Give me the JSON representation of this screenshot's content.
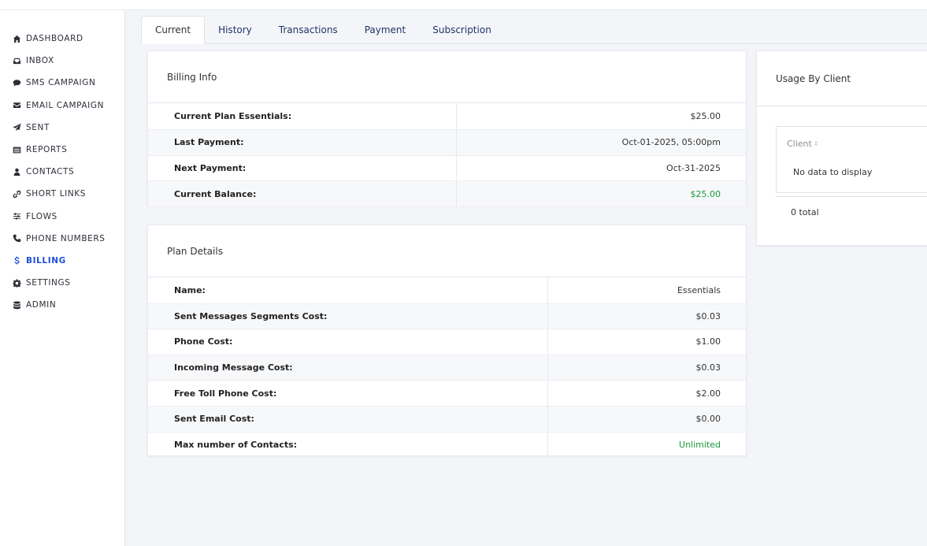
{
  "sidebar": {
    "items": [
      {
        "label": "DASHBOARD",
        "icon": "home-icon"
      },
      {
        "label": "INBOX",
        "icon": "inbox-icon"
      },
      {
        "label": "SMS CAMPAIGN",
        "icon": "chat-bubble-icon"
      },
      {
        "label": "EMAIL CAMPAIGN",
        "icon": "envelope-icon"
      },
      {
        "label": "SENT",
        "icon": "paper-plane-icon"
      },
      {
        "label": "REPORTS",
        "icon": "list-icon"
      },
      {
        "label": "CONTACTS",
        "icon": "user-icon"
      },
      {
        "label": "SHORT LINKS",
        "icon": "link-icon"
      },
      {
        "label": "FLOWS",
        "icon": "sliders-icon"
      },
      {
        "label": "PHONE NUMBERS",
        "icon": "phone-icon"
      },
      {
        "label": "BILLING",
        "icon": "dollar-icon",
        "active": true
      },
      {
        "label": "SETTINGS",
        "icon": "gear-icon"
      },
      {
        "label": "ADMIN",
        "icon": "database-icon"
      }
    ],
    "active_color": "#1d4fd8"
  },
  "tabs": [
    {
      "label": "Current",
      "active": true
    },
    {
      "label": "History"
    },
    {
      "label": "Transactions"
    },
    {
      "label": "Payment"
    },
    {
      "label": "Subscription"
    }
  ],
  "billing_info": {
    "title": "Billing Info",
    "rows": [
      {
        "label": "Current Plan Essentials:",
        "value": "$25.00"
      },
      {
        "label": "Last Payment:",
        "value": "Oct-01-2025, 05:00pm"
      },
      {
        "label": "Next Payment:",
        "value": "Oct-31-2025"
      },
      {
        "label": "Current Balance:",
        "value": "$25.00"
      }
    ]
  },
  "plan_details": {
    "title": "Plan Details",
    "rows": [
      {
        "label": "Name:",
        "value": "Essentials"
      },
      {
        "label": "Sent Messages Segments Cost:",
        "value": "$0.03"
      },
      {
        "label": "Phone Cost:",
        "value": "$1.00"
      },
      {
        "label": "Incoming Message Cost:",
        "value": "$0.03"
      },
      {
        "label": "Free Toll Phone Cost:",
        "value": "$2.00"
      },
      {
        "label": "Sent Email Cost:",
        "value": "$0.00"
      },
      {
        "label": "Max number of Contacts:",
        "value": "Unlimited"
      }
    ]
  },
  "usage_by_client": {
    "title": "Usage By Client",
    "column_header": "Client",
    "empty_text": "No data to display",
    "total_text": "0 total"
  },
  "colors": {
    "positive": "#1a9a3a"
  }
}
